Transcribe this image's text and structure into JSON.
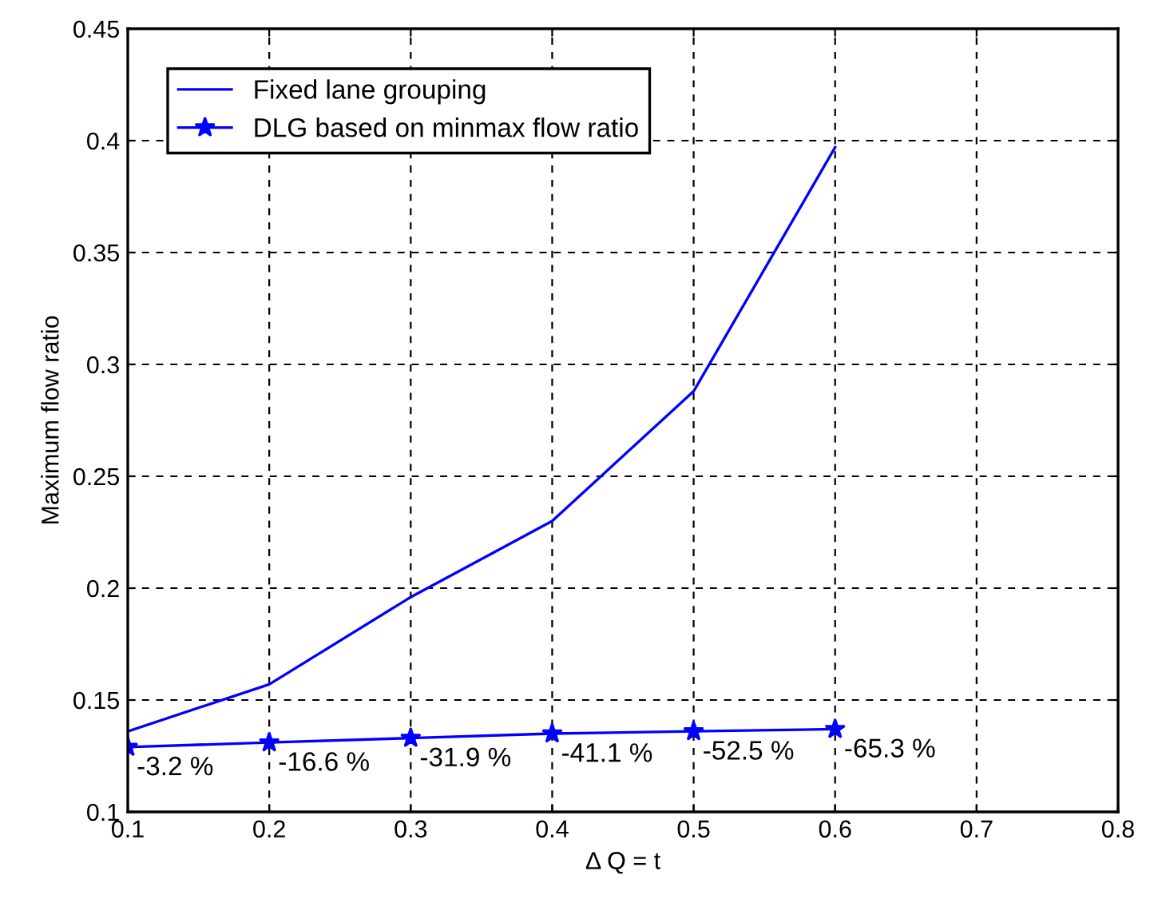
{
  "chart_data": {
    "type": "line",
    "xlabel": "Δ Q = t",
    "ylabel": "Maximum flow ratio",
    "x": [
      0.1,
      0.2,
      0.3,
      0.4,
      0.5,
      0.6
    ],
    "series": [
      {
        "name": "Fixed lane grouping",
        "color": "#0000ff",
        "values": [
          0.136,
          0.157,
          0.196,
          0.23,
          0.288,
          0.397
        ],
        "marker": "none"
      },
      {
        "name": "DLG based on minmax flow ratio",
        "color": "#0000ff",
        "values": [
          0.129,
          0.131,
          0.133,
          0.135,
          0.136,
          0.137
        ],
        "marker": "star"
      }
    ],
    "annotations": [
      {
        "text": "-3.2 %",
        "x": 0.1,
        "y": 0.129
      },
      {
        "text": "-16.6 %",
        "x": 0.2,
        "y": 0.131
      },
      {
        "text": "-31.9 %",
        "x": 0.3,
        "y": 0.133
      },
      {
        "text": "-41.1 %",
        "x": 0.4,
        "y": 0.135
      },
      {
        "text": "-52.5 %",
        "x": 0.5,
        "y": 0.136
      },
      {
        "text": "-65.3 %",
        "x": 0.6,
        "y": 0.137
      }
    ],
    "xlim": [
      0.1,
      0.8
    ],
    "xticks": [
      0.1,
      0.2,
      0.3,
      0.4,
      0.5,
      0.6,
      0.7,
      0.8
    ],
    "ylim": [
      0.1,
      0.45
    ],
    "yticks": [
      0.1,
      0.15,
      0.2,
      0.25,
      0.3,
      0.35,
      0.4,
      0.45
    ],
    "grid": true,
    "legend": "top left"
  }
}
